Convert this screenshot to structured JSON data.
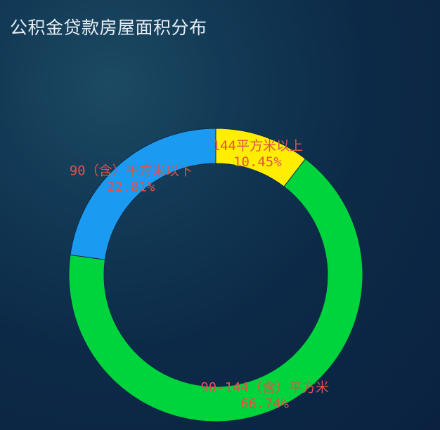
{
  "title": "公积金贷款房屋面积分布",
  "chart_data": {
    "type": "pie",
    "variant": "donut",
    "title": "公积金贷款房屋面积分布",
    "slices": [
      {
        "name": "144平方米以上",
        "percent": 10.45,
        "label": "10.45%",
        "color": "#ffee00"
      },
      {
        "name": "90-144（含）平方米",
        "percent": 66.74,
        "label": "66.74%",
        "color": "#00d43c"
      },
      {
        "name": "90（含）平方米以下",
        "percent": 22.81,
        "label": "22.81%",
        "color": "#1a9af0"
      }
    ],
    "start_angle_deg": 90,
    "direction": "clockwise",
    "label_color": "#e0524c",
    "legend": "none"
  }
}
